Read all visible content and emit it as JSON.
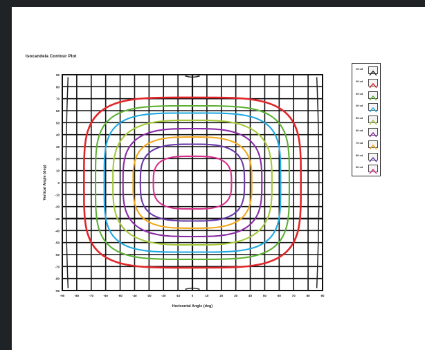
{
  "chart_data": {
    "type": "contour",
    "title": "Isocandela Contour Plot",
    "xlabel": "Horizontal Angle (deg)",
    "ylabel": "Vertical Angle (deg)",
    "xlim": [
      -90,
      90
    ],
    "ylim": [
      -90,
      90
    ],
    "xticks": [
      -90,
      -80,
      -70,
      -60,
      -50,
      -40,
      -30,
      -20,
      -10,
      0,
      10,
      20,
      30,
      40,
      50,
      60,
      70,
      80,
      90
    ],
    "yticks": [
      90,
      80,
      70,
      60,
      50,
      40,
      30,
      20,
      10,
      0,
      -10,
      -20,
      -30,
      -40,
      -50,
      -60,
      -70,
      -80,
      -90
    ],
    "grid": true,
    "legend_position": "right",
    "series": [
      {
        "name": "10 cd",
        "color": "#222222",
        "half_width": 88,
        "half_height": 88,
        "shape": "edge"
      },
      {
        "name": "20 cd",
        "color": "#e0262a",
        "half_width": 75,
        "half_height": 71
      },
      {
        "name": "30 cd",
        "color": "#5cb135",
        "half_width": 67,
        "half_height": 64
      },
      {
        "name": "40 cd",
        "color": "#1fa8e0",
        "half_width": 61,
        "half_height": 58
      },
      {
        "name": "50 cd",
        "color": "#a4c93a",
        "half_width": 55,
        "half_height": 52
      },
      {
        "name": "60 cd",
        "color": "#8a2aa6",
        "half_width": 48,
        "half_height": 45
      },
      {
        "name": "70 cd",
        "color": "#f2a71c",
        "half_width": 41,
        "half_height": 38
      },
      {
        "name": "80 cd",
        "color": "#6a3aa8",
        "half_width": 36,
        "half_height": 32
      },
      {
        "name": "90 cd",
        "color": "#d6308a",
        "half_width": 27,
        "half_height": 22
      }
    ]
  }
}
